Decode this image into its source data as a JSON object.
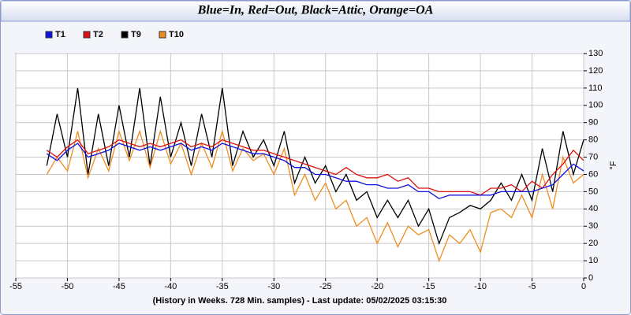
{
  "chart_data": {
    "type": "line",
    "title": "Blue=In, Red=Out, Black=Attic, Orange=OA",
    "x_label": "(History in Weeks. 728 Min. samples) - Last update: 05/02/2025 03:15:30",
    "y_label": "°F",
    "x": [
      -52,
      -51,
      -50,
      -49,
      -48,
      -47,
      -46,
      -45,
      -44,
      -43,
      -42,
      -41,
      -40,
      -39,
      -38,
      -37,
      -36,
      -35,
      -34,
      -33,
      -32,
      -31,
      -30,
      -29,
      -28,
      -27,
      -26,
      -25,
      -24,
      -23,
      -22,
      -21,
      -20,
      -19,
      -18,
      -17,
      -16,
      -15,
      -14,
      -13,
      -12,
      -11,
      -10,
      -9,
      -8,
      -7,
      -6,
      -5,
      -4,
      -3,
      -2,
      -1,
      0
    ],
    "series": [
      {
        "name": "T1",
        "color": "#1010e0",
        "values": [
          72,
          68,
          74,
          78,
          70,
          72,
          74,
          78,
          76,
          74,
          76,
          74,
          76,
          78,
          74,
          76,
          74,
          78,
          76,
          74,
          72,
          72,
          70,
          68,
          64,
          64,
          60,
          60,
          58,
          56,
          56,
          54,
          54,
          52,
          52,
          54,
          50,
          50,
          46,
          48,
          48,
          48,
          48,
          48,
          50,
          50,
          50,
          50,
          52,
          54,
          60,
          66,
          62
        ]
      },
      {
        "name": "T2",
        "color": "#e01010",
        "values": [
          74,
          70,
          76,
          80,
          72,
          74,
          76,
          80,
          78,
          76,
          78,
          76,
          78,
          80,
          76,
          78,
          76,
          80,
          78,
          76,
          74,
          74,
          72,
          70,
          68,
          66,
          64,
          62,
          60,
          64,
          60,
          58,
          58,
          60,
          56,
          58,
          52,
          52,
          50,
          50,
          50,
          50,
          48,
          52,
          52,
          54,
          50,
          56,
          52,
          60,
          66,
          74,
          68
        ]
      },
      {
        "name": "T9",
        "color": "#000000",
        "values": [
          65,
          95,
          70,
          110,
          60,
          95,
          65,
          100,
          70,
          110,
          65,
          105,
          70,
          90,
          65,
          95,
          70,
          110,
          65,
          85,
          70,
          80,
          65,
          85,
          55,
          70,
          55,
          65,
          50,
          60,
          45,
          50,
          35,
          45,
          35,
          45,
          30,
          40,
          20,
          35,
          38,
          42,
          40,
          45,
          55,
          45,
          60,
          45,
          75,
          50,
          85,
          60,
          80
        ]
      },
      {
        "name": "T10",
        "color": "#f08c1e",
        "values": [
          60,
          70,
          62,
          85,
          58,
          75,
          62,
          85,
          68,
          85,
          64,
          85,
          66,
          78,
          60,
          78,
          64,
          85,
          62,
          75,
          68,
          72,
          60,
          75,
          48,
          60,
          45,
          55,
          40,
          45,
          30,
          35,
          20,
          32,
          18,
          30,
          25,
          28,
          10,
          25,
          20,
          28,
          15,
          38,
          40,
          35,
          48,
          35,
          60,
          40,
          70,
          55,
          60
        ]
      }
    ],
    "draw_order": [
      "T9",
      "T10",
      "T2",
      "T1"
    ],
    "xlim": [
      -55,
      0
    ],
    "xticks": [
      -55,
      -50,
      -45,
      -40,
      -35,
      -30,
      -25,
      -20,
      -15,
      -10,
      -5,
      0
    ],
    "ylim": [
      0,
      130
    ],
    "yticks": [
      0,
      10,
      20,
      30,
      40,
      50,
      60,
      70,
      80,
      90,
      100,
      110,
      120,
      130
    ],
    "grid": true,
    "legend": "top-left"
  }
}
